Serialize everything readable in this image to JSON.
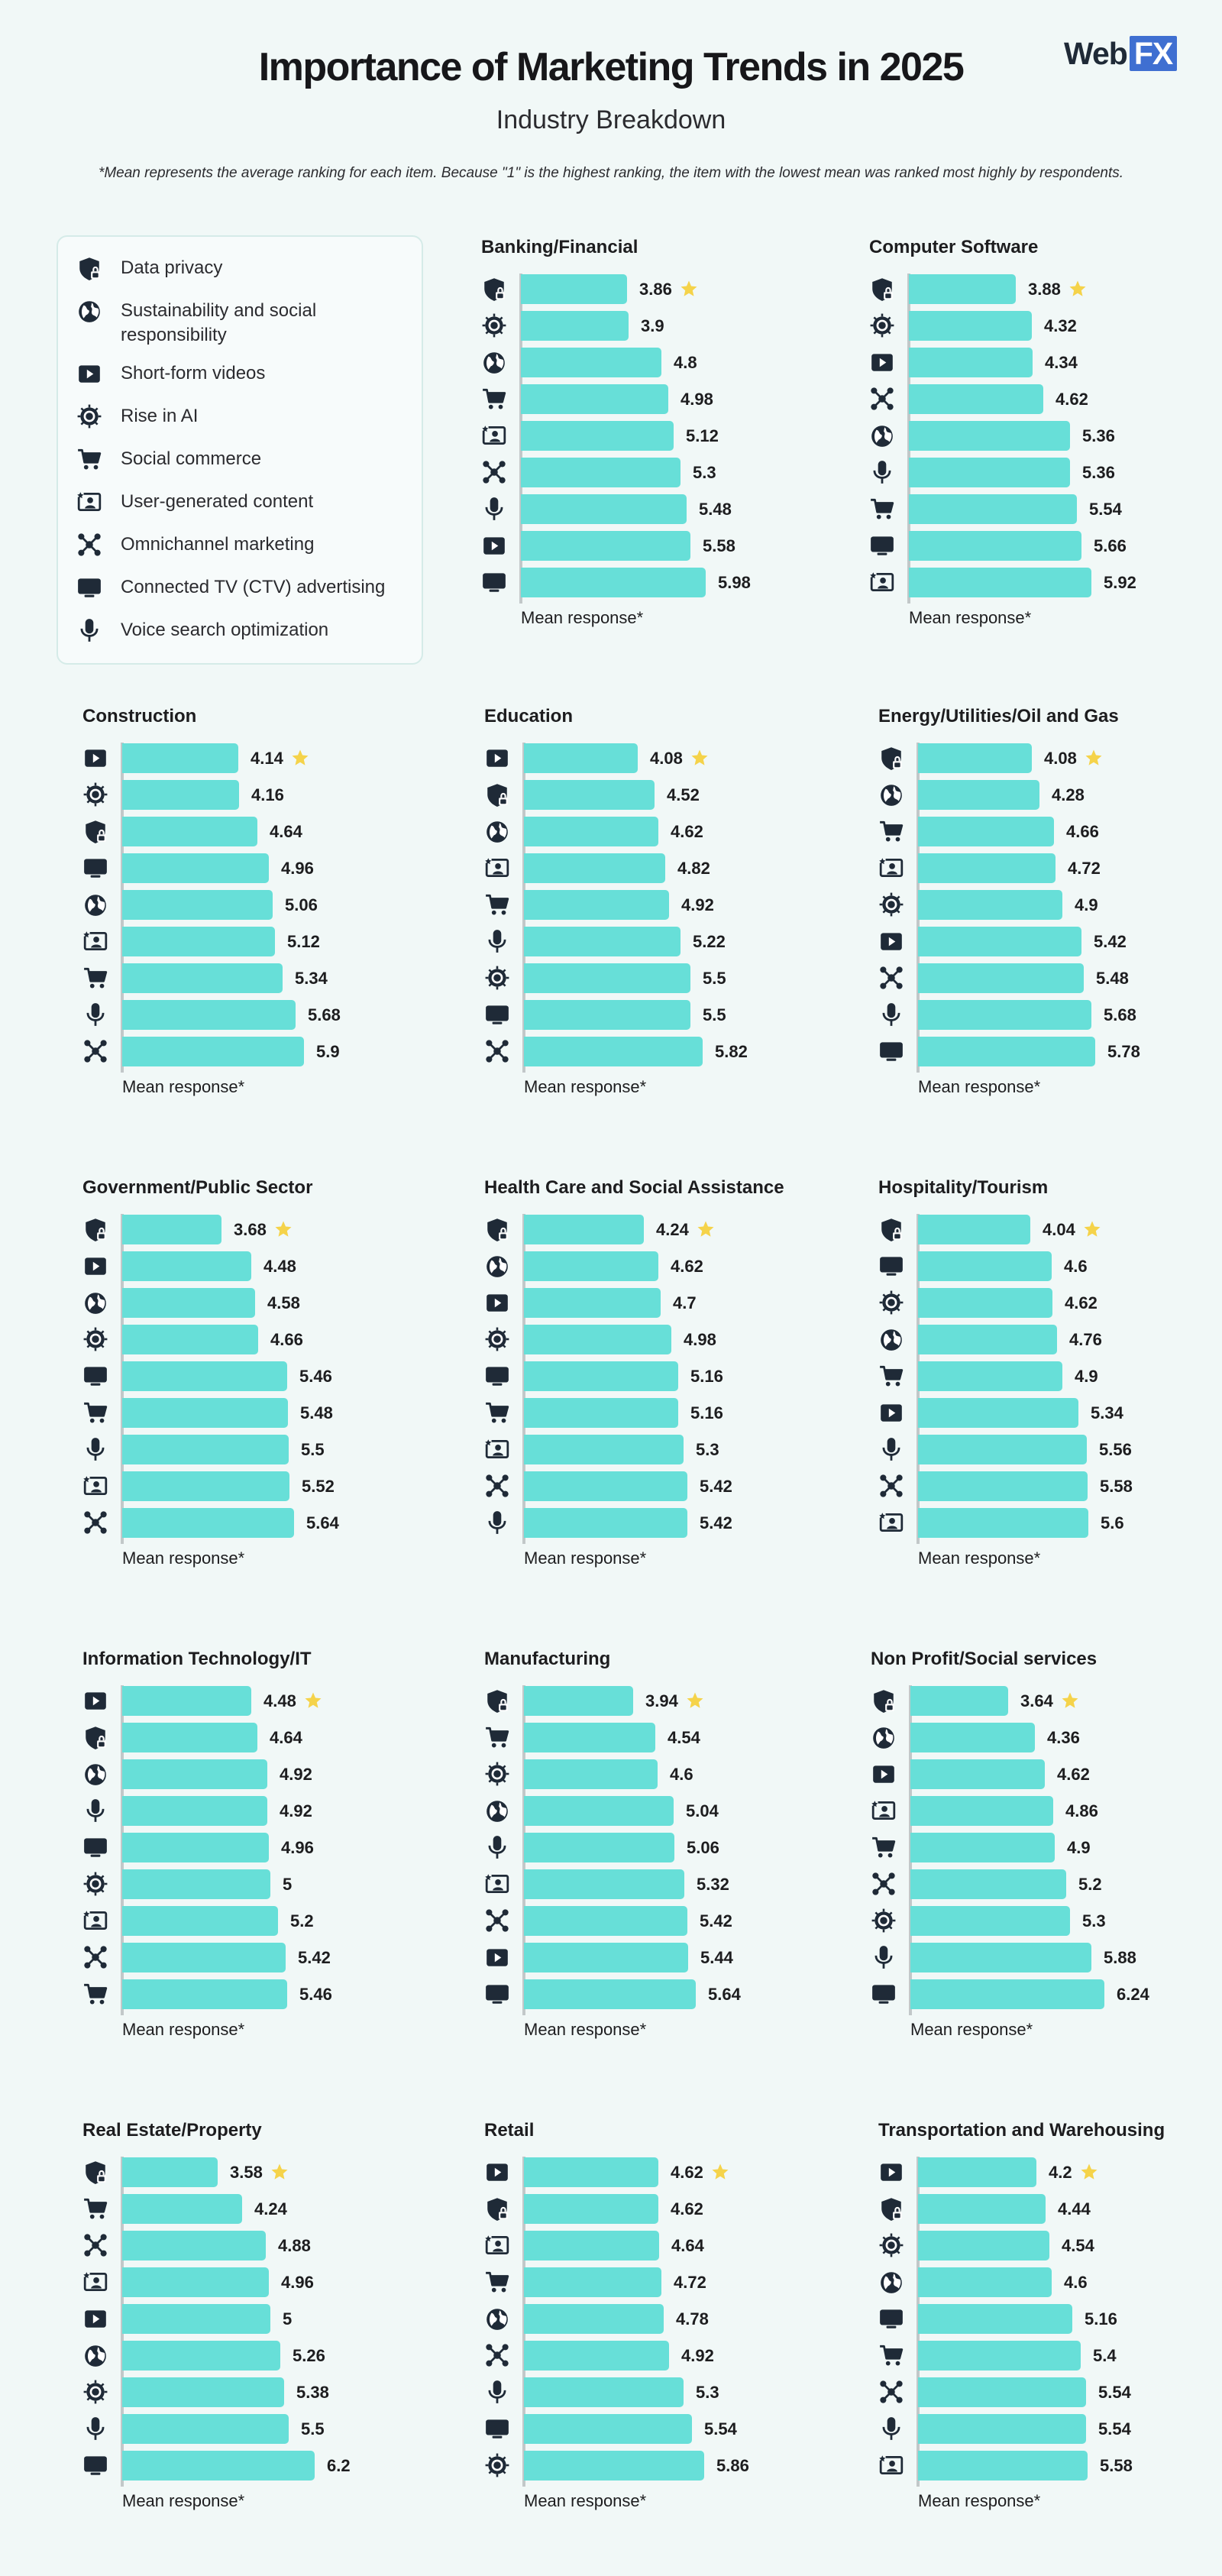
{
  "header": {
    "title": "Importance of Marketing Trends in 2025",
    "subtitle": "Industry Breakdown",
    "note": "*Mean represents the average ranking for each item. Because \"1\" is the highest ranking, the item with the lowest mean was ranked most highly by respondents.",
    "logo_web": "Web",
    "logo_fx": "FX"
  },
  "colors": {
    "bar": "#67dfd8",
    "star": "#f5d34a",
    "icon": "#1f2a37",
    "background": "#f1f8f7"
  },
  "legend": [
    {
      "key": "privacy",
      "label": "Data privacy",
      "icon": "shield-lock-icon"
    },
    {
      "key": "sustain",
      "label": "Sustainability and social responsibility",
      "icon": "globe-leaf-icon"
    },
    {
      "key": "video",
      "label": "Short-form videos",
      "icon": "play-button-icon"
    },
    {
      "key": "ai",
      "label": "Rise in AI",
      "icon": "chip-icon"
    },
    {
      "key": "cart",
      "label": "Social commerce",
      "icon": "shopping-cart-icon"
    },
    {
      "key": "ugc",
      "label": "User-generated content",
      "icon": "user-content-icon"
    },
    {
      "key": "omni",
      "label": "Omnichannel marketing",
      "icon": "network-icon"
    },
    {
      "key": "ctv",
      "label": "Connected TV (CTV) advertising",
      "icon": "tv-icon"
    },
    {
      "key": "voice",
      "label": "Voice search optimization",
      "icon": "microphone-icon"
    }
  ],
  "chart_data": {
    "type": "bar",
    "orientation": "horizontal",
    "xlabel": "Mean response*",
    "xlim": [
      0,
      6.5
    ],
    "highlight": "lowest mean marked with star",
    "panels": [
      {
        "title": "Banking/Financial",
        "items": [
          {
            "k": "privacy",
            "v": 3.86
          },
          {
            "k": "ai",
            "v": 3.9
          },
          {
            "k": "sustain",
            "v": 4.8
          },
          {
            "k": "cart",
            "v": 4.98
          },
          {
            "k": "ugc",
            "v": 5.12
          },
          {
            "k": "omni",
            "v": 5.3
          },
          {
            "k": "voice",
            "v": 5.48
          },
          {
            "k": "video",
            "v": 5.58
          },
          {
            "k": "ctv",
            "v": 5.98
          }
        ]
      },
      {
        "title": "Computer Software",
        "items": [
          {
            "k": "privacy",
            "v": 3.88
          },
          {
            "k": "ai",
            "v": 4.32
          },
          {
            "k": "video",
            "v": 4.34
          },
          {
            "k": "omni",
            "v": 4.62
          },
          {
            "k": "sustain",
            "v": 5.36
          },
          {
            "k": "voice",
            "v": 5.36
          },
          {
            "k": "cart",
            "v": 5.54
          },
          {
            "k": "ctv",
            "v": 5.66
          },
          {
            "k": "ugc",
            "v": 5.92
          }
        ]
      },
      {
        "title": "Construction",
        "items": [
          {
            "k": "video",
            "v": 4.14
          },
          {
            "k": "ai",
            "v": 4.16
          },
          {
            "k": "privacy",
            "v": 4.64
          },
          {
            "k": "ctv",
            "v": 4.96
          },
          {
            "k": "sustain",
            "v": 5.06
          },
          {
            "k": "ugc",
            "v": 5.12
          },
          {
            "k": "cart",
            "v": 5.34
          },
          {
            "k": "voice",
            "v": 5.68
          },
          {
            "k": "omni",
            "v": 5.9
          }
        ]
      },
      {
        "title": "Education",
        "items": [
          {
            "k": "video",
            "v": 4.08
          },
          {
            "k": "privacy",
            "v": 4.52
          },
          {
            "k": "sustain",
            "v": 4.62
          },
          {
            "k": "ugc",
            "v": 4.82
          },
          {
            "k": "cart",
            "v": 4.92
          },
          {
            "k": "voice",
            "v": 5.22
          },
          {
            "k": "ai",
            "v": 5.5
          },
          {
            "k": "ctv",
            "v": 5.5
          },
          {
            "k": "omni",
            "v": 5.82
          }
        ]
      },
      {
        "title": "Energy/Utilities/Oil and Gas",
        "items": [
          {
            "k": "privacy",
            "v": 4.08
          },
          {
            "k": "sustain",
            "v": 4.28
          },
          {
            "k": "cart",
            "v": 4.66
          },
          {
            "k": "ugc",
            "v": 4.72
          },
          {
            "k": "ai",
            "v": 4.9
          },
          {
            "k": "video",
            "v": 5.42
          },
          {
            "k": "omni",
            "v": 5.48
          },
          {
            "k": "voice",
            "v": 5.68
          },
          {
            "k": "ctv",
            "v": 5.78
          }
        ]
      },
      {
        "title": "Government/Public Sector",
        "items": [
          {
            "k": "privacy",
            "v": 3.68
          },
          {
            "k": "video",
            "v": 4.48
          },
          {
            "k": "sustain",
            "v": 4.58
          },
          {
            "k": "ai",
            "v": 4.66
          },
          {
            "k": "ctv",
            "v": 5.46
          },
          {
            "k": "cart",
            "v": 5.48
          },
          {
            "k": "voice",
            "v": 5.5
          },
          {
            "k": "ugc",
            "v": 5.52
          },
          {
            "k": "omni",
            "v": 5.64
          }
        ]
      },
      {
        "title": "Health Care and Social Assistance",
        "items": [
          {
            "k": "privacy",
            "v": 4.24
          },
          {
            "k": "sustain",
            "v": 4.62
          },
          {
            "k": "video",
            "v": 4.7
          },
          {
            "k": "ai",
            "v": 4.98
          },
          {
            "k": "ctv",
            "v": 5.16
          },
          {
            "k": "cart",
            "v": 5.16
          },
          {
            "k": "ugc",
            "v": 5.3
          },
          {
            "k": "omni",
            "v": 5.42
          },
          {
            "k": "voice",
            "v": 5.42
          }
        ]
      },
      {
        "title": "Hospitality/Tourism",
        "items": [
          {
            "k": "privacy",
            "v": 4.04
          },
          {
            "k": "ctv",
            "v": 4.6
          },
          {
            "k": "ai",
            "v": 4.62
          },
          {
            "k": "sustain",
            "v": 4.76
          },
          {
            "k": "cart",
            "v": 4.9
          },
          {
            "k": "video",
            "v": 5.34
          },
          {
            "k": "voice",
            "v": 5.56
          },
          {
            "k": "omni",
            "v": 5.58
          },
          {
            "k": "ugc",
            "v": 5.6
          }
        ]
      },
      {
        "title": "Information Technology/IT",
        "items": [
          {
            "k": "video",
            "v": 4.48
          },
          {
            "k": "privacy",
            "v": 4.64
          },
          {
            "k": "sustain",
            "v": 4.92
          },
          {
            "k": "voice",
            "v": 4.92
          },
          {
            "k": "ctv",
            "v": 4.96
          },
          {
            "k": "ai",
            "v": 5
          },
          {
            "k": "ugc",
            "v": 5.2
          },
          {
            "k": "omni",
            "v": 5.42
          },
          {
            "k": "cart",
            "v": 5.46
          }
        ]
      },
      {
        "title": "Manufacturing",
        "items": [
          {
            "k": "privacy",
            "v": 3.94
          },
          {
            "k": "cart",
            "v": 4.54
          },
          {
            "k": "ai",
            "v": 4.6
          },
          {
            "k": "sustain",
            "v": 5.04
          },
          {
            "k": "voice",
            "v": 5.06
          },
          {
            "k": "ugc",
            "v": 5.32
          },
          {
            "k": "omni",
            "v": 5.42
          },
          {
            "k": "video",
            "v": 5.44
          },
          {
            "k": "ctv",
            "v": 5.64
          }
        ]
      },
      {
        "title": "Non Profit/Social services",
        "items": [
          {
            "k": "privacy",
            "v": 3.64
          },
          {
            "k": "sustain",
            "v": 4.36
          },
          {
            "k": "video",
            "v": 4.62
          },
          {
            "k": "ugc",
            "v": 4.86
          },
          {
            "k": "cart",
            "v": 4.9
          },
          {
            "k": "omni",
            "v": 5.2
          },
          {
            "k": "ai",
            "v": 5.3
          },
          {
            "k": "voice",
            "v": 5.88
          },
          {
            "k": "ctv",
            "v": 6.24
          }
        ]
      },
      {
        "title": "Real Estate/Property",
        "items": [
          {
            "k": "privacy",
            "v": 3.58
          },
          {
            "k": "cart",
            "v": 4.24
          },
          {
            "k": "omni",
            "v": 4.88
          },
          {
            "k": "ugc",
            "v": 4.96
          },
          {
            "k": "video",
            "v": 5
          },
          {
            "k": "sustain",
            "v": 5.26
          },
          {
            "k": "ai",
            "v": 5.38
          },
          {
            "k": "voice",
            "v": 5.5
          },
          {
            "k": "ctv",
            "v": 6.2
          }
        ]
      },
      {
        "title": "Retail",
        "items": [
          {
            "k": "video",
            "v": 4.62
          },
          {
            "k": "privacy",
            "v": 4.62
          },
          {
            "k": "ugc",
            "v": 4.64
          },
          {
            "k": "cart",
            "v": 4.72
          },
          {
            "k": "sustain",
            "v": 4.78
          },
          {
            "k": "omni",
            "v": 4.92
          },
          {
            "k": "voice",
            "v": 5.3
          },
          {
            "k": "ctv",
            "v": 5.54
          },
          {
            "k": "ai",
            "v": 5.86
          }
        ]
      },
      {
        "title": "Transportation and Warehousing",
        "items": [
          {
            "k": "video",
            "v": 4.2
          },
          {
            "k": "privacy",
            "v": 4.44
          },
          {
            "k": "ai",
            "v": 4.54
          },
          {
            "k": "sustain",
            "v": 4.6
          },
          {
            "k": "ctv",
            "v": 5.16
          },
          {
            "k": "cart",
            "v": 5.4
          },
          {
            "k": "omni",
            "v": 5.54
          },
          {
            "k": "voice",
            "v": 5.54
          },
          {
            "k": "ugc",
            "v": 5.58
          }
        ]
      }
    ]
  }
}
